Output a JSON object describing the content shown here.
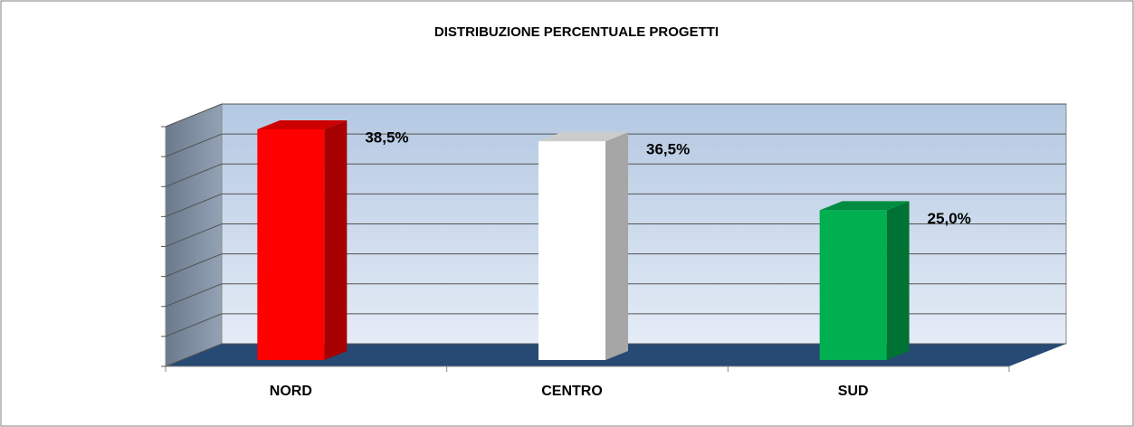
{
  "chart_data": {
    "type": "bar3d",
    "title": "DISTRIBUZIONE PERCENTUALE PROGETTI",
    "categories": [
      "NORD",
      "CENTRO",
      "SUD"
    ],
    "values": [
      38.5,
      36.5,
      25.0
    ],
    "value_labels": [
      "38,5%",
      "36,5%",
      "25,0%"
    ],
    "colors": [
      "#ff0000",
      "#ffffff",
      "#00b050"
    ],
    "ylim": [
      0,
      40
    ],
    "yticks": [
      0,
      5,
      10,
      15,
      20,
      25,
      30,
      35,
      40
    ],
    "grid": true
  }
}
